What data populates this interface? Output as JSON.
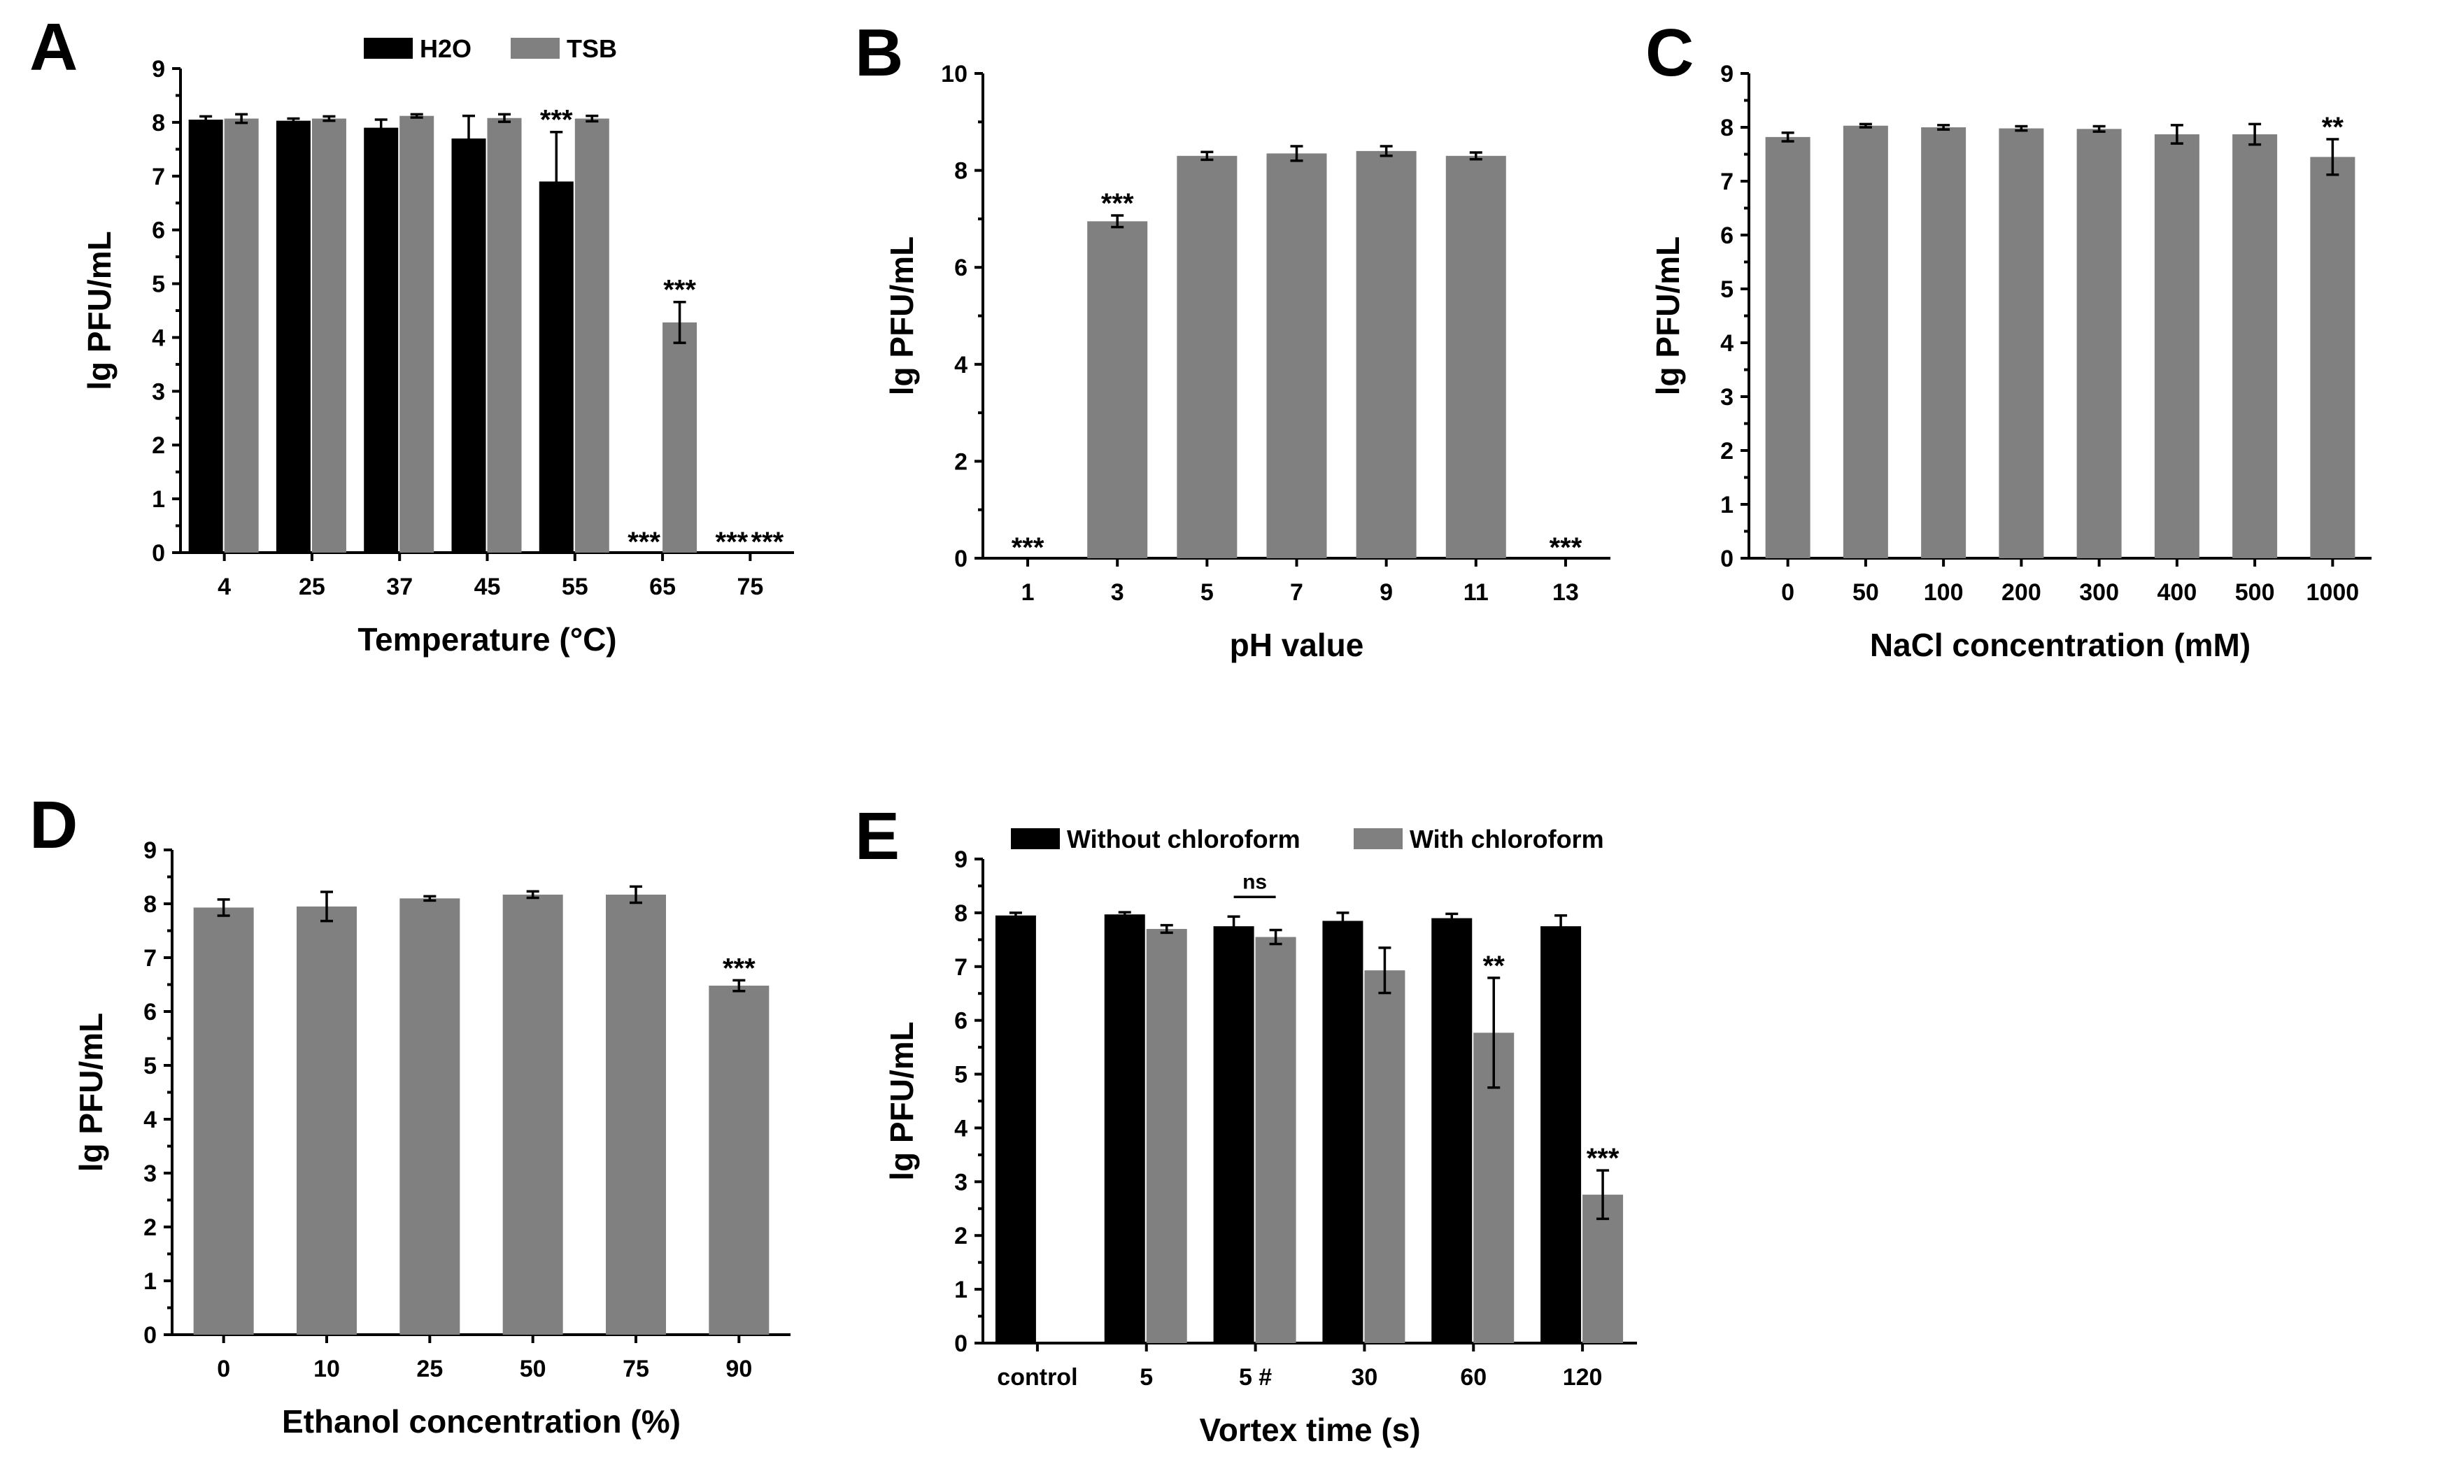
{
  "chart_data": [
    {
      "panel": "A",
      "type": "bar",
      "categories": [
        "4",
        "25",
        "37",
        "45",
        "55",
        "65",
        "75"
      ],
      "xlabel": "Temperature (°C)",
      "ylabel": "lg PFU/mL",
      "ylim": [
        0,
        9
      ],
      "yticks": [
        "0",
        "1",
        "2",
        "3",
        "4",
        "5",
        "6",
        "7",
        "8",
        "9"
      ],
      "legend": "top",
      "series": [
        {
          "name": "H2O",
          "color": "#000000",
          "values": [
            8.05,
            8.03,
            7.9,
            7.7,
            6.9,
            0,
            0
          ],
          "errors": [
            0.06,
            0.04,
            0.15,
            0.42,
            0.92,
            0,
            0
          ]
        },
        {
          "name": "TSB",
          "color": "#808080",
          "values": [
            8.07,
            8.07,
            8.12,
            8.08,
            8.07,
            4.28,
            0
          ],
          "errors": [
            0.08,
            0.04,
            0.03,
            0.07,
            0.05,
            0.38,
            0
          ]
        }
      ],
      "annotations": [
        {
          "text": "***",
          "category": "55",
          "series": "H2O"
        },
        {
          "text": "***",
          "category": "65",
          "series": "H2O"
        },
        {
          "text": "***",
          "category": "65",
          "series": "TSB"
        },
        {
          "text": "***",
          "category": "75",
          "series": "H2O"
        },
        {
          "text": "***",
          "category": "75",
          "series": "TSB"
        }
      ]
    },
    {
      "panel": "B",
      "type": "bar",
      "categories": [
        "1",
        "3",
        "5",
        "7",
        "9",
        "11",
        "13"
      ],
      "xlabel": "pH value",
      "ylabel": "lg PFU/mL",
      "ylim": [
        0,
        10
      ],
      "yticks": [
        "0",
        "2",
        "4",
        "6",
        "8",
        "10"
      ],
      "series": [
        {
          "color": "#808080",
          "values": [
            0,
            6.95,
            8.3,
            8.35,
            8.4,
            8.3,
            0
          ],
          "errors": [
            0,
            0.12,
            0.08,
            0.15,
            0.1,
            0.07,
            0
          ]
        }
      ],
      "annotations": [
        {
          "text": "***",
          "category": "1"
        },
        {
          "text": "***",
          "category": "3"
        },
        {
          "text": "***",
          "category": "13"
        }
      ]
    },
    {
      "panel": "C",
      "type": "bar",
      "categories": [
        "0",
        "50",
        "100",
        "200",
        "300",
        "400",
        "500",
        "1000"
      ],
      "xlabel": "NaCl concentration (mM)",
      "ylabel": "lg PFU/mL",
      "ylim": [
        0,
        9
      ],
      "yticks": [
        "0",
        "1",
        "2",
        "3",
        "4",
        "5",
        "6",
        "7",
        "8",
        "9"
      ],
      "series": [
        {
          "color": "#808080",
          "values": [
            7.82,
            8.03,
            8.0,
            7.98,
            7.97,
            7.87,
            7.87,
            7.45
          ],
          "errors": [
            0.08,
            0.03,
            0.04,
            0.04,
            0.05,
            0.17,
            0.19,
            0.33
          ]
        }
      ],
      "annotations": [
        {
          "text": "**",
          "category": "1000"
        }
      ]
    },
    {
      "panel": "D",
      "type": "bar",
      "categories": [
        "0",
        "10",
        "25",
        "50",
        "75",
        "90"
      ],
      "xlabel": "Ethanol concentration (%)",
      "ylabel": "lg PFU/mL",
      "ylim": [
        0,
        9
      ],
      "yticks": [
        "0",
        "1",
        "2",
        "3",
        "4",
        "5",
        "6",
        "7",
        "8",
        "9"
      ],
      "series": [
        {
          "color": "#808080",
          "values": [
            7.93,
            7.95,
            8.1,
            8.17,
            8.17,
            6.48
          ],
          "errors": [
            0.15,
            0.27,
            0.04,
            0.06,
            0.15,
            0.1
          ]
        }
      ],
      "annotations": [
        {
          "text": "***",
          "category": "90"
        }
      ]
    },
    {
      "panel": "E",
      "type": "bar",
      "categories": [
        "control",
        "5",
        "5 #",
        "30",
        "60",
        "120"
      ],
      "xlabel": "Vortex time (s)",
      "ylabel": "lg PFU/mL",
      "ylim": [
        0,
        9
      ],
      "yticks": [
        "0",
        "1",
        "2",
        "3",
        "4",
        "5",
        "6",
        "7",
        "8",
        "9"
      ],
      "legend": "top",
      "series": [
        {
          "name": "Without chloroform",
          "color": "#000000",
          "values": [
            7.95,
            7.97,
            7.75,
            7.85,
            7.9,
            7.75
          ],
          "errors": [
            0.05,
            0.04,
            0.18,
            0.15,
            0.08,
            0.2
          ]
        },
        {
          "name": "With chloroform",
          "color": "#808080",
          "values": [
            null,
            7.7,
            7.55,
            6.93,
            5.77,
            2.76
          ],
          "errors": [
            0,
            0.07,
            0.13,
            0.42,
            1.02,
            0.45
          ]
        }
      ],
      "annotations": [
        {
          "text": "ns",
          "category": "5 #",
          "type": "bracket"
        },
        {
          "text": "**",
          "category": "60",
          "series": "With chloroform"
        },
        {
          "text": "***",
          "category": "120",
          "series": "With chloroform"
        }
      ]
    }
  ]
}
